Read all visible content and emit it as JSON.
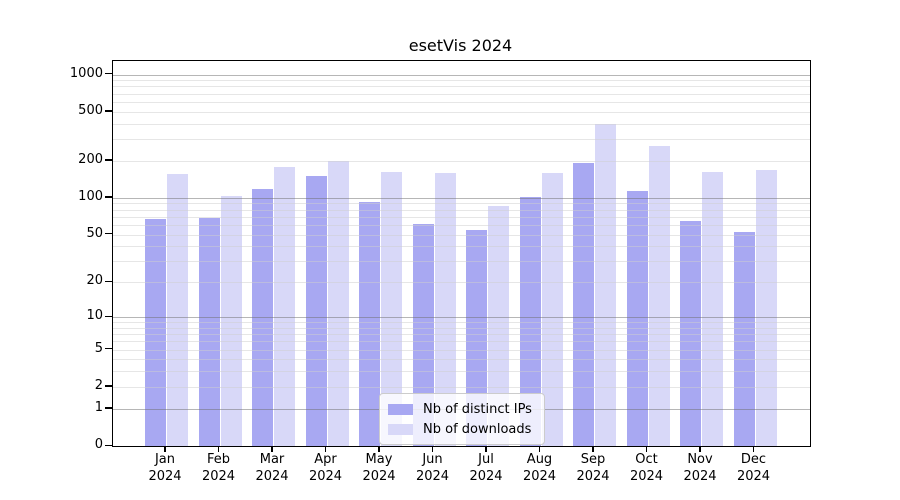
{
  "chart_data": {
    "type": "bar",
    "title": "esetVis 2024",
    "categories": [
      "Jan",
      "Feb",
      "Mar",
      "Apr",
      "May",
      "Jun",
      "Jul",
      "Aug",
      "Sep",
      "Oct",
      "Nov",
      "Dec"
    ],
    "category_year": "2024",
    "series": [
      {
        "name": "Nb of distinct IPs",
        "color": "#a8a8f2",
        "values": [
          67,
          68,
          118,
          150,
          92,
          61,
          55,
          101,
          192,
          114,
          65,
          53
        ]
      },
      {
        "name": "Nb of downloads",
        "color": "#d8d8f8",
        "values": [
          157,
          103,
          178,
          200,
          161,
          160,
          86,
          160,
          400,
          262,
          162,
          168
        ]
      }
    ],
    "yaxis": {
      "scale": "log1p",
      "tick_values": [
        0,
        1,
        2,
        5,
        10,
        20,
        50,
        100,
        200,
        500,
        1000
      ],
      "range_max": 1280
    },
    "xlabel": "",
    "ylabel": "",
    "grid": {
      "shown": true,
      "major_color": "#b5b5b5",
      "minor_color": "#e4e4e4"
    },
    "legend": {
      "position": "lower-center"
    }
  }
}
